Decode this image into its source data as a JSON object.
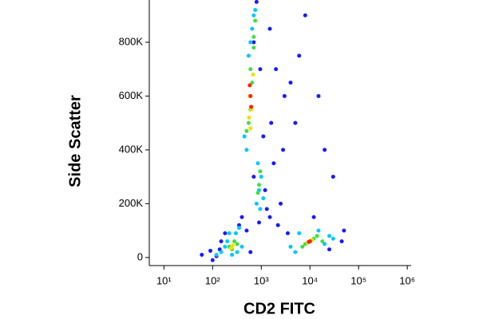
{
  "chart_data": {
    "type": "scatter",
    "xlabel": "CD2 FITC",
    "ylabel": "Side Scatter",
    "xscale": "log",
    "xlim": [
      5,
      1200000
    ],
    "xticks": [
      {
        "value": 10,
        "label": "10¹"
      },
      {
        "value": 100,
        "label": "10²"
      },
      {
        "value": 1000,
        "label": "10³"
      },
      {
        "value": 10000,
        "label": "10⁴"
      },
      {
        "value": 100000,
        "label": "10⁵"
      },
      {
        "value": 1000000,
        "label": "10⁶"
      }
    ],
    "ylim": [
      -30000,
      957000
    ],
    "yticks": [
      0,
      {
        "value": 200000,
        "label": "200K"
      },
      {
        "value": 400000,
        "label": "400K"
      },
      {
        "value": 600000,
        "label": "600K"
      },
      {
        "value": 800000,
        "label": "800K"
      }
    ],
    "series": [
      {
        "color": "#1a1aff",
        "x": [
          60,
          90,
          120,
          150,
          180,
          400,
          700,
          1500,
          2000,
          3000,
          5000,
          8000,
          20000,
          30000,
          50000,
          2500,
          4000,
          6000,
          1800,
          1200,
          900,
          800,
          1100,
          700,
          500,
          350,
          1500,
          3500,
          12000,
          25000,
          45000,
          2200,
          1600,
          100,
          140,
          600,
          950,
          1300,
          2800,
          15000
        ],
        "values": [
          10000,
          25000,
          5000,
          60000,
          90000,
          150000,
          300000,
          850000,
          700000,
          600000,
          500000,
          900000,
          400000,
          300000,
          100000,
          200000,
          650000,
          750000,
          350000,
          250000,
          130000,
          950000,
          450000,
          800000,
          100000,
          120000,
          150000,
          90000,
          150000,
          30000,
          60000,
          120000,
          500000,
          -10000,
          30000,
          20000,
          700000,
          180000,
          400000,
          600000
        ]
      },
      {
        "color": "#00c8ff",
        "x": [
          150,
          200,
          300,
          400,
          250,
          180,
          350,
          800,
          900,
          1000,
          850,
          700,
          600,
          550,
          500,
          450,
          650,
          750,
          4000,
          6000,
          15000,
          20000,
          25000,
          5000,
          30000,
          120,
          220,
          320,
          950,
          1100
        ],
        "values": [
          20000,
          60000,
          90000,
          40000,
          10000,
          40000,
          110000,
          200000,
          250000,
          300000,
          350000,
          900000,
          800000,
          750000,
          400000,
          450000,
          850000,
          920000,
          40000,
          90000,
          100000,
          50000,
          80000,
          20000,
          70000,
          10000,
          90000,
          20000,
          180000,
          220000
        ]
      },
      {
        "color": "#40e040",
        "x": [
          220,
          280,
          320,
          250,
          900,
          950,
          850,
          600,
          650,
          700,
          550,
          500,
          700,
          8000,
          12000,
          7000,
          14000,
          18000,
          600,
          750
        ],
        "values": [
          40000,
          60000,
          50000,
          30000,
          270000,
          320000,
          240000,
          700000,
          650000,
          820000,
          500000,
          470000,
          780000,
          50000,
          70000,
          40000,
          80000,
          60000,
          550000,
          880000
        ]
      },
      {
        "color": "#f0e000",
        "x": [
          260,
          240,
          580,
          620,
          560,
          680,
          10000,
          9000,
          11000,
          600
        ],
        "values": [
          45000,
          35000,
          600000,
          550000,
          520000,
          680000,
          60000,
          55000,
          65000,
          480000
        ]
      },
      {
        "color": "#ff2000",
        "x": [
          600,
          580,
          620,
          10000,
          9500
        ],
        "values": [
          600000,
          640000,
          560000,
          60000,
          58000
        ]
      }
    ]
  }
}
